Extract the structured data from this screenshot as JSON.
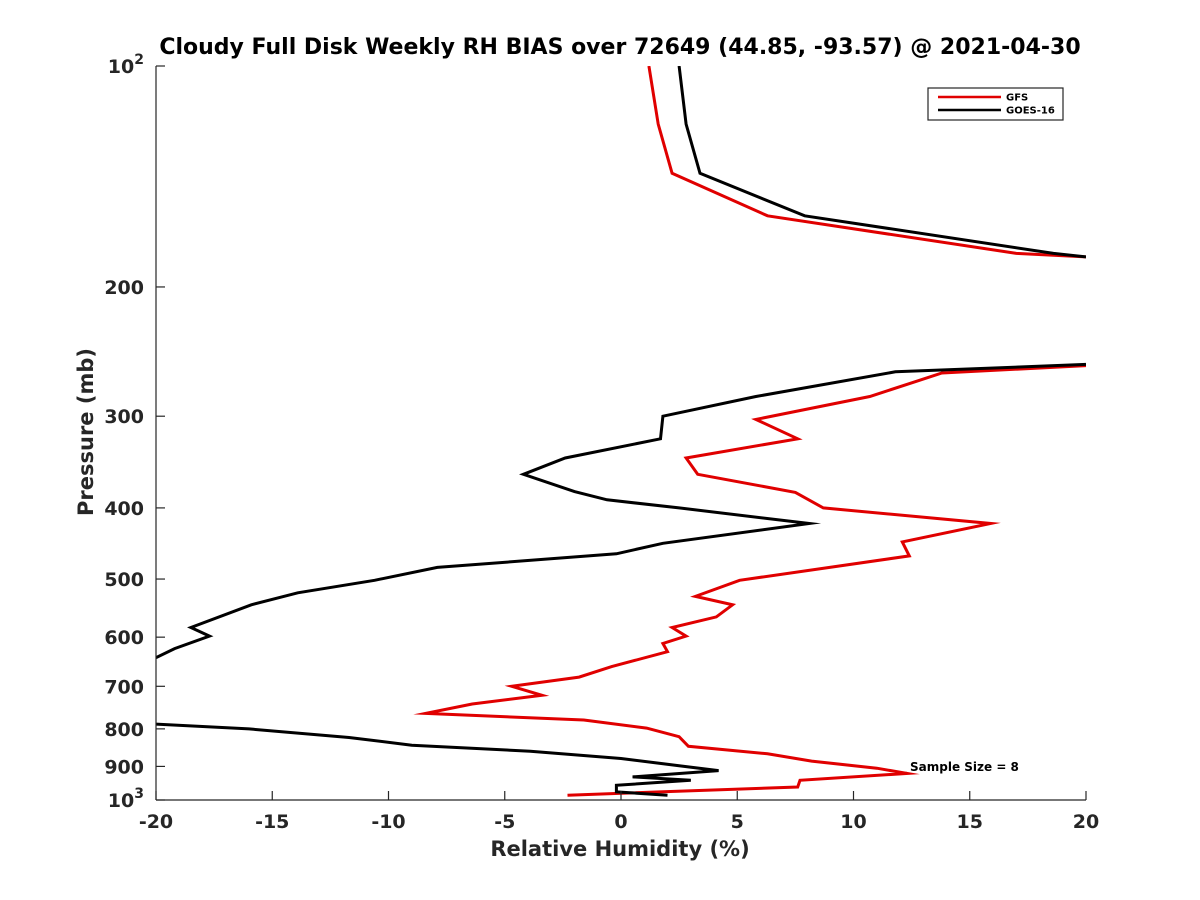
{
  "chart_data": {
    "type": "line",
    "title": "Cloudy Full Disk Weekly RH BIAS over 72649 (44.85, -93.57) @ 2021-04-30",
    "xlabel": "Relative Humidity (%)",
    "ylabel": "Pressure (mb)",
    "xlim": [
      -20,
      20
    ],
    "ylim": [
      100,
      1000
    ],
    "y_scale": "log",
    "y_reversed": true,
    "xticks": [
      -20,
      -15,
      -10,
      -5,
      0,
      5,
      10,
      15,
      20
    ],
    "xtick_labels": [
      "-20",
      "-15",
      "-10",
      "-5",
      "0",
      "5",
      "10",
      "15",
      "20"
    ],
    "yticks": [
      {
        "value": 100,
        "label": "10",
        "sup": "2"
      },
      {
        "value": 200,
        "label": "200"
      },
      {
        "value": 300,
        "label": "300"
      },
      {
        "value": 400,
        "label": "400"
      },
      {
        "value": 500,
        "label": "500"
      },
      {
        "value": 600,
        "label": "600"
      },
      {
        "value": 700,
        "label": "700"
      },
      {
        "value": 800,
        "label": "800"
      },
      {
        "value": 900,
        "label": "900"
      },
      {
        "value": 1000,
        "label": "10",
        "sup": "3"
      }
    ],
    "grid": false,
    "legend_position": "top-right",
    "annotation": "Sample Size = 8",
    "series": [
      {
        "name": "GFS",
        "color": "#e00000",
        "points": [
          [
            1.2,
            100
          ],
          [
            1.6,
            120
          ],
          [
            2.2,
            140
          ],
          [
            6.3,
            160
          ],
          [
            17.0,
            180
          ],
          [
            20.0,
            182
          ],
          null,
          [
            20.0,
            256
          ],
          [
            13.8,
            262
          ],
          [
            10.7,
            282
          ],
          [
            5.8,
            303
          ],
          [
            7.6,
            322
          ],
          [
            2.8,
            342
          ],
          [
            3.3,
            360
          ],
          [
            7.5,
            381
          ],
          [
            8.7,
            400
          ],
          [
            15.9,
            420
          ],
          [
            12.1,
            445
          ],
          [
            12.4,
            465
          ],
          [
            5.1,
            502
          ],
          [
            3.2,
            528
          ],
          [
            4.8,
            542
          ],
          [
            4.1,
            563
          ],
          [
            2.2,
            582
          ],
          [
            2.8,
            598
          ],
          [
            1.8,
            612
          ],
          [
            2.0,
            628
          ],
          [
            -0.4,
            658
          ],
          [
            -1.8,
            680
          ],
          [
            -4.7,
            700
          ],
          [
            -3.4,
            720
          ],
          [
            -6.4,
            740
          ],
          [
            -8.4,
            762
          ],
          [
            -1.6,
            778
          ],
          [
            1.1,
            798
          ],
          [
            2.5,
            820
          ],
          [
            2.9,
            845
          ],
          [
            6.3,
            865
          ],
          [
            8.2,
            885
          ],
          [
            11.0,
            905
          ],
          [
            12.3,
            920
          ],
          [
            7.7,
            940
          ],
          [
            7.6,
            960
          ],
          [
            -2.3,
            985
          ]
        ]
      },
      {
        "name": "GOES-16",
        "color": "#000000",
        "points": [
          [
            2.5,
            100
          ],
          [
            2.8,
            120
          ],
          [
            3.4,
            140
          ],
          [
            7.9,
            160
          ],
          [
            18.6,
            180
          ],
          [
            20.0,
            182
          ],
          null,
          [
            20.0,
            255
          ],
          [
            11.8,
            261
          ],
          [
            5.8,
            282
          ],
          [
            1.8,
            300
          ],
          [
            1.7,
            322
          ],
          [
            -2.4,
            342
          ],
          [
            -4.2,
            360
          ],
          [
            -2.0,
            380
          ],
          [
            -0.6,
            390
          ],
          [
            2.5,
            400
          ],
          [
            8.1,
            420
          ],
          [
            1.8,
            447
          ],
          [
            -0.2,
            462
          ],
          [
            -7.9,
            482
          ],
          [
            -10.6,
            502
          ],
          [
            -13.9,
            522
          ],
          [
            -15.9,
            542
          ],
          [
            -18.5,
            582
          ],
          [
            -17.7,
            598
          ],
          [
            -19.2,
            622
          ],
          [
            -20.0,
            640
          ],
          null,
          [
            -20.0,
            788
          ],
          [
            -16.0,
            800
          ],
          [
            -11.7,
            822
          ],
          [
            -9.0,
            842
          ],
          [
            -3.9,
            858
          ],
          [
            0.0,
            878
          ],
          [
            2.5,
            898
          ],
          [
            4.2,
            912
          ],
          [
            0.5,
            930
          ],
          [
            3.0,
            940
          ],
          [
            -0.2,
            955
          ],
          [
            -0.2,
            975
          ],
          [
            2.0,
            985
          ]
        ]
      }
    ]
  }
}
